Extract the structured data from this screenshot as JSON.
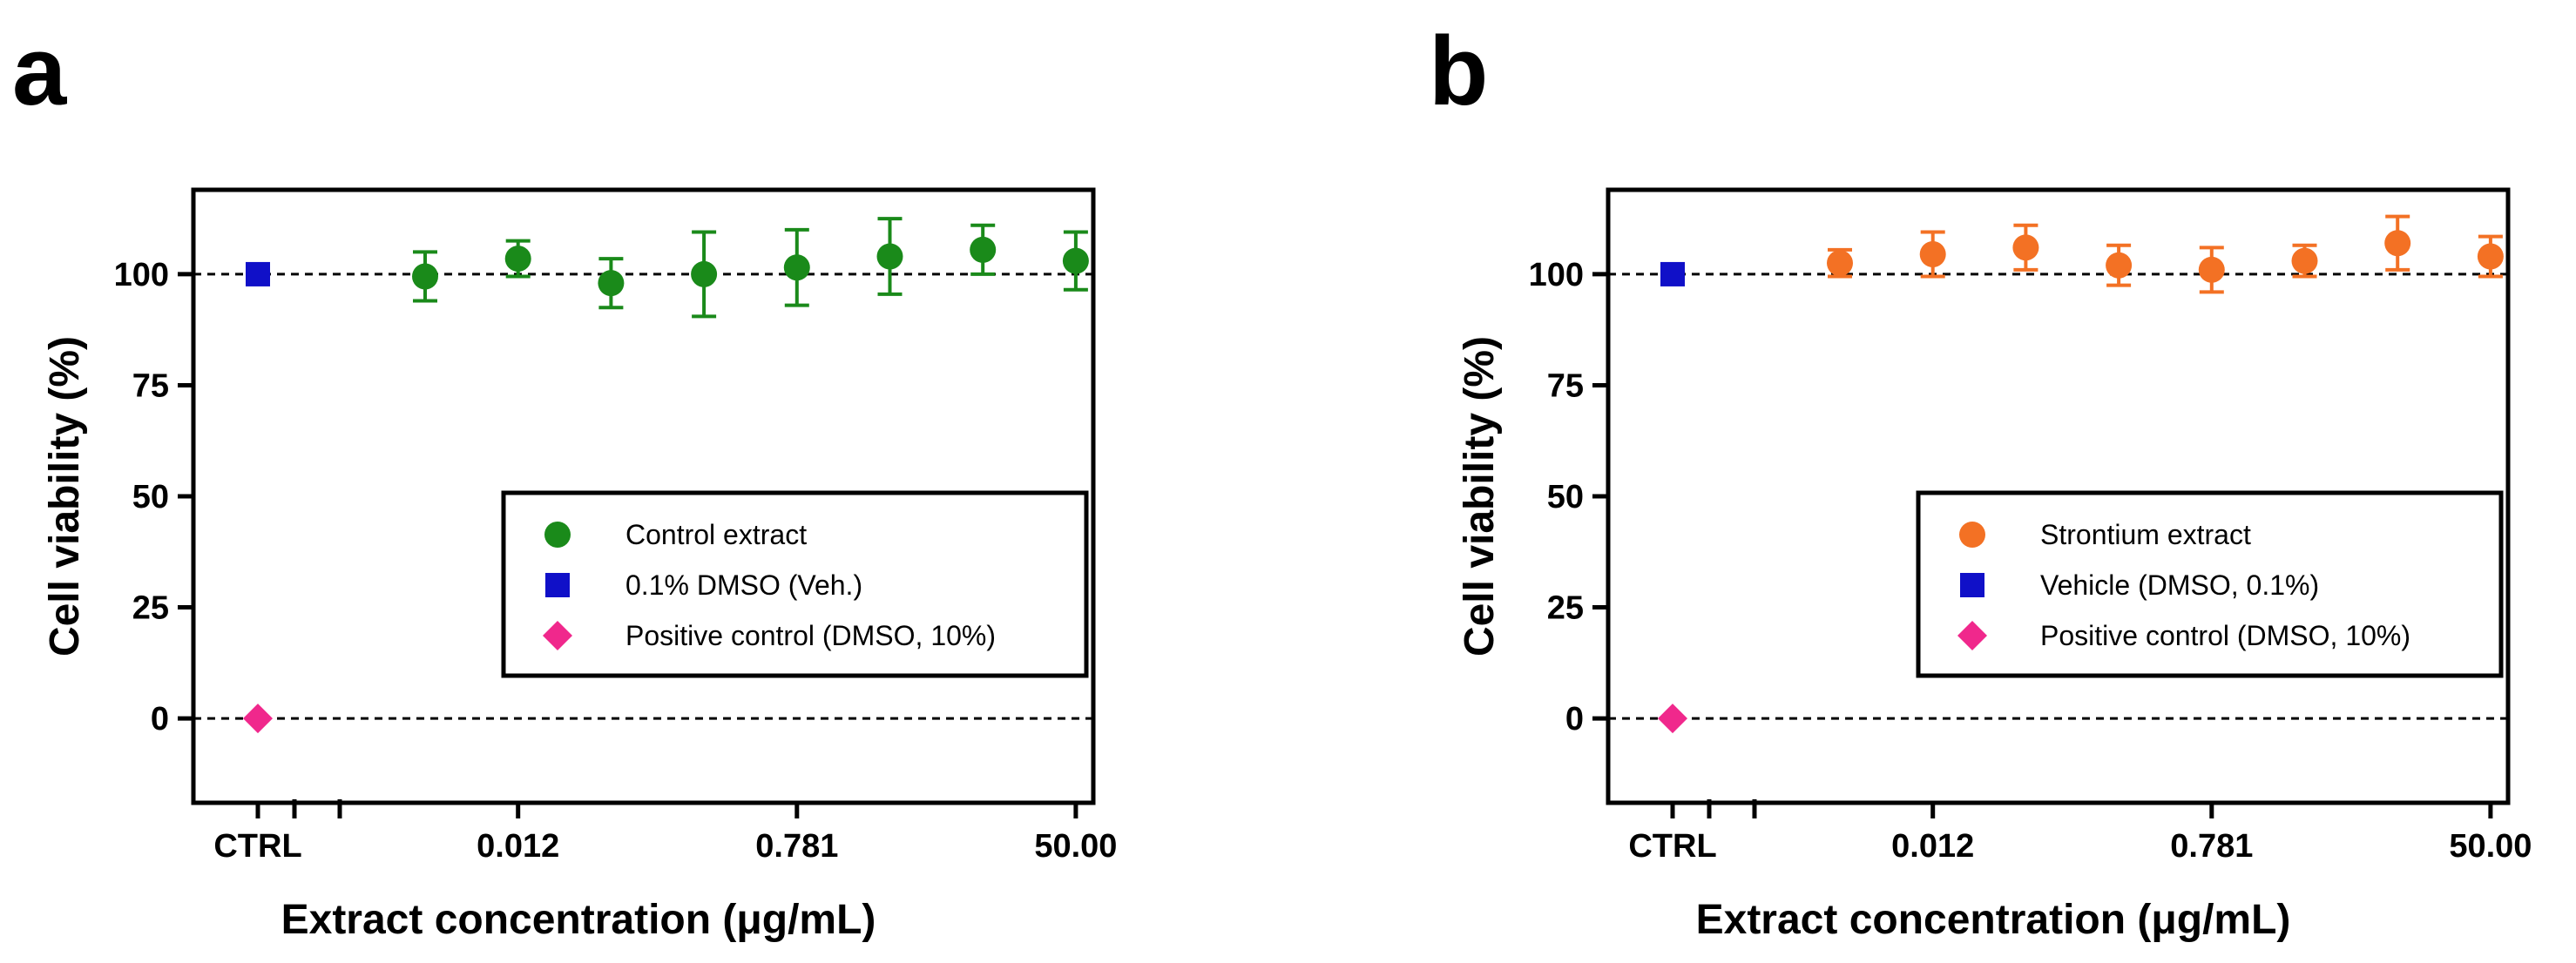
{
  "colors": {
    "control_extract": "#1a8a1a",
    "strontium_extract": "#f37124",
    "vehicle": "#1010c8",
    "positive_control": "#f0288c",
    "axis": "#000000"
  },
  "chart_data": [
    {
      "panel": "a",
      "type": "scatter",
      "ylabel": "Cell viability (%)",
      "xlabel": "Extract concentration (μg/mL)",
      "ylim": [
        -19,
        119
      ],
      "yticks": [
        0,
        25,
        50,
        75,
        100
      ],
      "yticklabels": [
        "0",
        "25",
        "50",
        "75",
        "100"
      ],
      "ctrl_label": "CTRL",
      "xticklabels": [
        "0.012",
        "0.781",
        "50.00"
      ],
      "xtick_positions": [
        1,
        4,
        7
      ],
      "reference_lines": [
        100,
        0
      ],
      "grid": false,
      "legend_position": "center-right",
      "series": [
        {
          "name": "Control extract",
          "marker": "circle",
          "color_key": "control_extract",
          "x": [
            0,
            1,
            2,
            3,
            4,
            5,
            6,
            7
          ],
          "y": [
            99.5,
            103.5,
            98.0,
            100.0,
            101.5,
            104.0,
            105.5,
            103.0
          ],
          "err": [
            5.5,
            4.0,
            5.5,
            9.5,
            8.5,
            8.5,
            5.5,
            6.5
          ]
        },
        {
          "name": "0.1% DMSO (Veh.)",
          "marker": "square",
          "color_key": "vehicle",
          "group": "CTRL",
          "y": [
            100
          ]
        },
        {
          "name": "Positive control (DMSO, 10%)",
          "marker": "diamond",
          "color_key": "positive_control",
          "group": "CTRL",
          "y": [
            0
          ]
        }
      ]
    },
    {
      "panel": "b",
      "type": "scatter",
      "ylabel": "Cell viability (%)",
      "xlabel": "Extract concentration (μg/mL)",
      "ylim": [
        -19,
        119
      ],
      "yticks": [
        0,
        25,
        50,
        75,
        100
      ],
      "yticklabels": [
        "0",
        "25",
        "50",
        "75",
        "100"
      ],
      "ctrl_label": "CTRL",
      "xticklabels": [
        "0.012",
        "0.781",
        "50.00"
      ],
      "xtick_positions": [
        1,
        4,
        7
      ],
      "reference_lines": [
        100,
        0
      ],
      "grid": false,
      "legend_position": "center-right",
      "series": [
        {
          "name": "Strontium extract",
          "marker": "circle",
          "color_key": "strontium_extract",
          "x": [
            0,
            1,
            2,
            3,
            4,
            5,
            6,
            7
          ],
          "y": [
            102.5,
            104.5,
            106.0,
            102.0,
            101.0,
            103.0,
            107.0,
            104.0
          ],
          "err": [
            3.0,
            5.0,
            5.0,
            4.5,
            5.0,
            3.5,
            6.0,
            4.5
          ]
        },
        {
          "name": "Vehicle (DMSO, 0.1%)",
          "marker": "square",
          "color_key": "vehicle",
          "group": "CTRL",
          "y": [
            100
          ]
        },
        {
          "name": "Positive control (DMSO, 10%)",
          "marker": "diamond",
          "color_key": "positive_control",
          "group": "CTRL",
          "y": [
            0
          ]
        }
      ]
    }
  ]
}
